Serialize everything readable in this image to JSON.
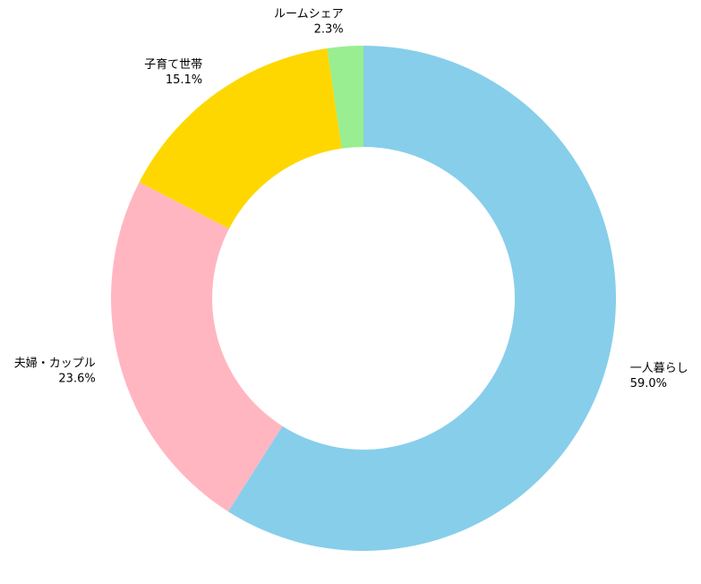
{
  "chart_data": {
    "type": "donut",
    "categories": [
      "一人暮らし",
      "夫婦・カップル",
      "子育て世帯",
      "ルームシェア"
    ],
    "values": [
      59.0,
      23.6,
      15.1,
      2.3
    ],
    "value_labels": [
      "59.0%",
      "23.6%",
      "15.1%",
      "2.3%"
    ],
    "colors": [
      "#87ceeb",
      "#ffb6c1",
      "#ffd700",
      "#98ee90"
    ]
  }
}
